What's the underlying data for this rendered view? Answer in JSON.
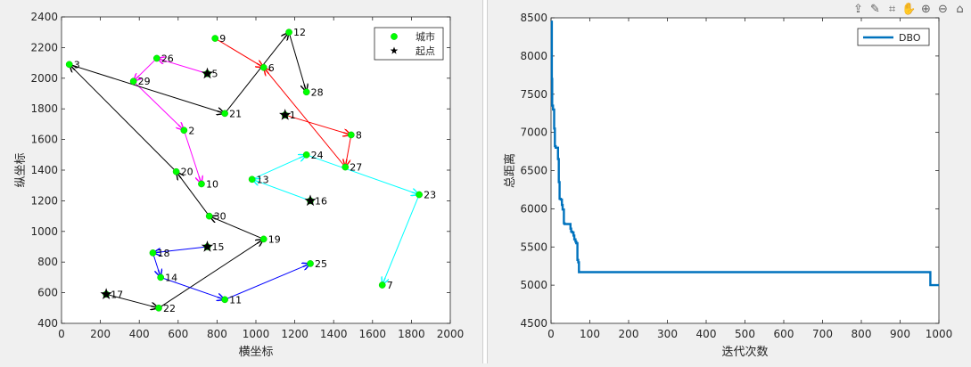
{
  "toolbar": {
    "icons": [
      "export-icon",
      "brush-icon",
      "datatip-icon",
      "pan-icon",
      "zoom-in-icon",
      "zoom-out-icon",
      "home-icon"
    ]
  },
  "chart_data": [
    {
      "type": "scatter",
      "title": "",
      "xlabel": "横坐标",
      "ylabel": "纵坐标",
      "xlim": [
        0,
        2000
      ],
      "ylim": [
        400,
        2400
      ],
      "xticks": [
        0,
        200,
        400,
        600,
        800,
        1000,
        1200,
        1400,
        1600,
        1800,
        2000
      ],
      "yticks": [
        400,
        600,
        800,
        1000,
        1200,
        1400,
        1600,
        1800,
        2000,
        2200,
        2400
      ],
      "legend": {
        "position": "top-right",
        "entries": [
          "城市",
          "起点"
        ]
      },
      "cities": [
        {
          "id": "1",
          "x": 1150,
          "y": 1760
        },
        {
          "id": "2",
          "x": 630,
          "y": 1660
        },
        {
          "id": "3",
          "x": 40,
          "y": 2090
        },
        {
          "id": "5",
          "x": 750,
          "y": 2030
        },
        {
          "id": "6",
          "x": 1040,
          "y": 2070
        },
        {
          "id": "7",
          "x": 1650,
          "y": 650
        },
        {
          "id": "8",
          "x": 1490,
          "y": 1630
        },
        {
          "id": "9",
          "x": 790,
          "y": 2260
        },
        {
          "id": "10",
          "x": 720,
          "y": 1310
        },
        {
          "id": "11",
          "x": 840,
          "y": 555
        },
        {
          "id": "12",
          "x": 1170,
          "y": 2300
        },
        {
          "id": "13",
          "x": 980,
          "y": 1340
        },
        {
          "id": "14",
          "x": 510,
          "y": 700
        },
        {
          "id": "15",
          "x": 750,
          "y": 900
        },
        {
          "id": "16",
          "x": 1280,
          "y": 1200
        },
        {
          "id": "17",
          "x": 230,
          "y": 590
        },
        {
          "id": "18",
          "x": 470,
          "y": 860
        },
        {
          "id": "19",
          "x": 1040,
          "y": 950
        },
        {
          "id": "20",
          "x": 590,
          "y": 1390
        },
        {
          "id": "21",
          "x": 840,
          "y": 1770
        },
        {
          "id": "22",
          "x": 500,
          "y": 500
        },
        {
          "id": "23",
          "x": 1840,
          "y": 1240
        },
        {
          "id": "24",
          "x": 1260,
          "y": 1500
        },
        {
          "id": "25",
          "x": 1280,
          "y": 790
        },
        {
          "id": "26",
          "x": 490,
          "y": 2130
        },
        {
          "id": "27",
          "x": 1460,
          "y": 1420
        },
        {
          "id": "28",
          "x": 1260,
          "y": 1910
        },
        {
          "id": "29",
          "x": 370,
          "y": 1980
        },
        {
          "id": "30",
          "x": 760,
          "y": 1100
        }
      ],
      "start_points": [
        {
          "x": 1150,
          "y": 1760
        },
        {
          "x": 750,
          "y": 2030
        },
        {
          "x": 1280,
          "y": 1200
        },
        {
          "x": 230,
          "y": 590
        },
        {
          "x": 750,
          "y": 900
        }
      ],
      "routes": [
        {
          "color": "#ff0000",
          "points": [
            [
              1150,
              1760
            ],
            [
              1490,
              1630
            ],
            [
              1460,
              1420
            ]
          ]
        },
        {
          "color": "#ff0000",
          "points": [
            [
              790,
              2260
            ],
            [
              1040,
              2070
            ]
          ]
        },
        {
          "color": "#ff0000",
          "points": [
            [
              1460,
              1420
            ],
            [
              1040,
              2070
            ]
          ]
        },
        {
          "color": "#ff00ff",
          "points": [
            [
              750,
              2030
            ],
            [
              490,
              2130
            ],
            [
              370,
              1980
            ],
            [
              630,
              1660
            ],
            [
              720,
              1310
            ]
          ]
        },
        {
          "color": "#00ffff",
          "points": [
            [
              1280,
              1200
            ],
            [
              980,
              1340
            ]
          ]
        },
        {
          "color": "#00ffff",
          "points": [
            [
              1260,
              1500
            ],
            [
              1840,
              1240
            ],
            [
              1650,
              650
            ]
          ]
        },
        {
          "color": "#00ffff",
          "points": [
            [
              980,
              1340
            ],
            [
              1260,
              1500
            ]
          ]
        },
        {
          "color": "#000000",
          "points": [
            [
              230,
              590
            ],
            [
              500,
              500
            ],
            [
              1040,
              950
            ],
            [
              760,
              1100
            ],
            [
              590,
              1390
            ]
          ]
        },
        {
          "color": "#000000",
          "points": [
            [
              590,
              1390
            ],
            [
              40,
              2090
            ],
            [
              840,
              1770
            ],
            [
              1170,
              2300
            ],
            [
              1260,
              1910
            ]
          ]
        },
        {
          "color": "#0000ff",
          "points": [
            [
              750,
              900
            ],
            [
              470,
              860
            ],
            [
              510,
              700
            ],
            [
              840,
              555
            ],
            [
              1280,
              790
            ]
          ]
        }
      ]
    },
    {
      "type": "line",
      "title": "",
      "xlabel": "迭代次数",
      "ylabel": "总距离",
      "xlim": [
        0,
        1000
      ],
      "ylim": [
        4500,
        8500
      ],
      "xticks": [
        0,
        100,
        200,
        300,
        400,
        500,
        600,
        700,
        800,
        900,
        1000
      ],
      "yticks": [
        4500,
        5000,
        5500,
        6000,
        6500,
        7000,
        7500,
        8000,
        8500
      ],
      "legend": {
        "position": "top-right",
        "entries": [
          "DBO"
        ]
      },
      "series": [
        {
          "name": "DBO",
          "color": "#0072bd",
          "x": [
            0,
            2,
            3,
            5,
            8,
            10,
            12,
            15,
            18,
            20,
            22,
            25,
            28,
            30,
            33,
            35,
            38,
            40,
            45,
            50,
            52,
            55,
            58,
            60,
            63,
            65,
            68,
            70,
            72,
            975,
            978,
            1000
          ],
          "y": [
            8450,
            7700,
            7350,
            7300,
            7050,
            6820,
            6800,
            6800,
            6650,
            6350,
            6130,
            6120,
            6050,
            5990,
            5810,
            5800,
            5800,
            5800,
            5800,
            5740,
            5700,
            5690,
            5650,
            5600,
            5570,
            5550,
            5330,
            5300,
            5170,
            5170,
            5000,
            5000
          ]
        }
      ]
    }
  ]
}
